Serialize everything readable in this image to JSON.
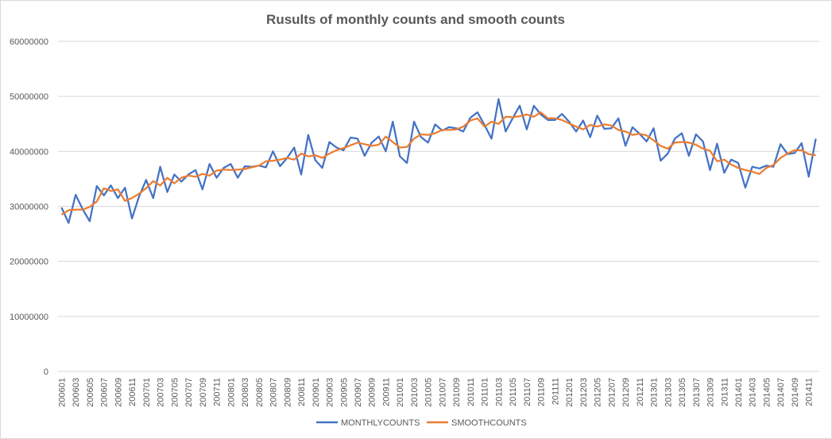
{
  "chart_data": {
    "type": "line",
    "title": "Rusults of monthly counts and smooth counts",
    "xlabel": "",
    "ylabel": "",
    "ylim": [
      0,
      60000000
    ],
    "yticks": [
      0,
      10000000,
      20000000,
      30000000,
      40000000,
      50000000,
      60000000
    ],
    "ytick_labels": [
      "0",
      "10000000",
      "20000000",
      "30000000",
      "40000000",
      "50000000",
      "60000000"
    ],
    "grid": true,
    "legend_position": "bottom",
    "x": [
      "200601",
      "200602",
      "200603",
      "200604",
      "200605",
      "200606",
      "200607",
      "200608",
      "200609",
      "200610",
      "200611",
      "200612",
      "200701",
      "200702",
      "200703",
      "200704",
      "200705",
      "200706",
      "200707",
      "200708",
      "200709",
      "200710",
      "200711",
      "200712",
      "200801",
      "200802",
      "200803",
      "200804",
      "200805",
      "200806",
      "200807",
      "200808",
      "200809",
      "200810",
      "200811",
      "200812",
      "200901",
      "200902",
      "200903",
      "200904",
      "200905",
      "200906",
      "200907",
      "200908",
      "200909",
      "200910",
      "200911",
      "200912",
      "201001",
      "201002",
      "201003",
      "201004",
      "201005",
      "201006",
      "201007",
      "201008",
      "201009",
      "201010",
      "201011",
      "201012",
      "201101",
      "201102",
      "201103",
      "201104",
      "201105",
      "201106",
      "201107",
      "201108",
      "201109",
      "201110",
      "201111",
      "201112",
      "201201",
      "201202",
      "201203",
      "201204",
      "201205",
      "201206",
      "201207",
      "201208",
      "201209",
      "201210",
      "201211",
      "201212",
      "201301",
      "201302",
      "201303",
      "201304",
      "201305",
      "201306",
      "201307",
      "201308",
      "201309",
      "201310",
      "201311",
      "201312",
      "201401",
      "201402",
      "201403",
      "201404",
      "201405",
      "201406",
      "201407",
      "201408",
      "201409",
      "201410",
      "201411",
      "201412"
    ],
    "xtick_labels": [
      "200601",
      "200603",
      "200605",
      "200607",
      "200609",
      "200611",
      "200701",
      "200703",
      "200705",
      "200707",
      "200709",
      "200711",
      "200801",
      "200803",
      "200805",
      "200807",
      "200809",
      "200811",
      "200901",
      "200903",
      "200905",
      "200907",
      "200909",
      "200911",
      "201001",
      "201003",
      "201005",
      "201007",
      "201009",
      "201011",
      "201101",
      "201103",
      "201105",
      "201107",
      "201109",
      "201111",
      "201201",
      "201203",
      "201205",
      "201207",
      "201209",
      "201211",
      "201301",
      "201303",
      "201305",
      "201307",
      "201309",
      "201311",
      "201401",
      "201403",
      "201405",
      "201407",
      "201409",
      "201411"
    ],
    "series": [
      {
        "name": "MONTHLYCOUNTS",
        "color": "#4472c4",
        "values": [
          29800000,
          27000000,
          32100000,
          29500000,
          27300000,
          33700000,
          32000000,
          33800000,
          31500000,
          33400000,
          27800000,
          31800000,
          34800000,
          31500000,
          37200000,
          32600000,
          35800000,
          34500000,
          35800000,
          36600000,
          33100000,
          37700000,
          35200000,
          37000000,
          37700000,
          35200000,
          37300000,
          37200000,
          37400000,
          37100000,
          40000000,
          37300000,
          38800000,
          40700000,
          35800000,
          43000000,
          38400000,
          37000000,
          41700000,
          40700000,
          40200000,
          42500000,
          42300000,
          39200000,
          41600000,
          42700000,
          40000000,
          45400000,
          39100000,
          37900000,
          45400000,
          42600000,
          41600000,
          44900000,
          43800000,
          44400000,
          44200000,
          43600000,
          46100000,
          47100000,
          44800000,
          42300000,
          49500000,
          43600000,
          46000000,
          48300000,
          44000000,
          48300000,
          46700000,
          45700000,
          45700000,
          46800000,
          45400000,
          43600000,
          45600000,
          42600000,
          46500000,
          44100000,
          44200000,
          46000000,
          41000000,
          44400000,
          43200000,
          41800000,
          44200000,
          38300000,
          39600000,
          42300000,
          43300000,
          39200000,
          43100000,
          41800000,
          36600000,
          41400000,
          36100000,
          38500000,
          37900000,
          33400000,
          37200000,
          36900000,
          37400000,
          37200000,
          41300000,
          39500000,
          39700000,
          41500000,
          35400000,
          42300000
        ]
      },
      {
        "name": "SMOOTHCOUNTS",
        "color": "#ed7d31",
        "values": [
          28500000,
          29300000,
          29400000,
          29400000,
          29900000,
          30900000,
          33300000,
          32800000,
          33100000,
          31000000,
          31500000,
          32300000,
          33300000,
          34600000,
          33800000,
          35200000,
          34200000,
          35200000,
          35600000,
          35400000,
          35900000,
          35600000,
          36500000,
          36700000,
          36600000,
          36700000,
          36800000,
          37100000,
          37400000,
          38200000,
          38300000,
          38500000,
          38800000,
          38500000,
          39600000,
          39100000,
          39300000,
          38800000,
          39600000,
          40200000,
          40600000,
          41100000,
          41600000,
          41300000,
          41000000,
          41200000,
          42700000,
          41700000,
          40700000,
          40800000,
          42300000,
          43100000,
          43000000,
          43300000,
          43900000,
          43900000,
          44000000,
          44500000,
          45600000,
          46000000,
          44500000,
          45400000,
          45000000,
          46300000,
          46200000,
          46400000,
          46700000,
          46300000,
          47100000,
          46000000,
          46000000,
          45700000,
          45100000,
          44500000,
          44000000,
          44800000,
          44500000,
          44900000,
          44700000,
          43900000,
          43600000,
          43000000,
          43200000,
          42900000,
          42000000,
          41000000,
          40500000,
          41600000,
          41700000,
          41600000,
          41200000,
          40500000,
          40100000,
          38200000,
          38500000,
          37600000,
          37000000,
          36600000,
          36300000,
          35900000,
          37000000,
          37500000,
          38800000,
          39600000,
          40200000,
          40200000,
          39500000,
          39300000
        ]
      }
    ]
  }
}
